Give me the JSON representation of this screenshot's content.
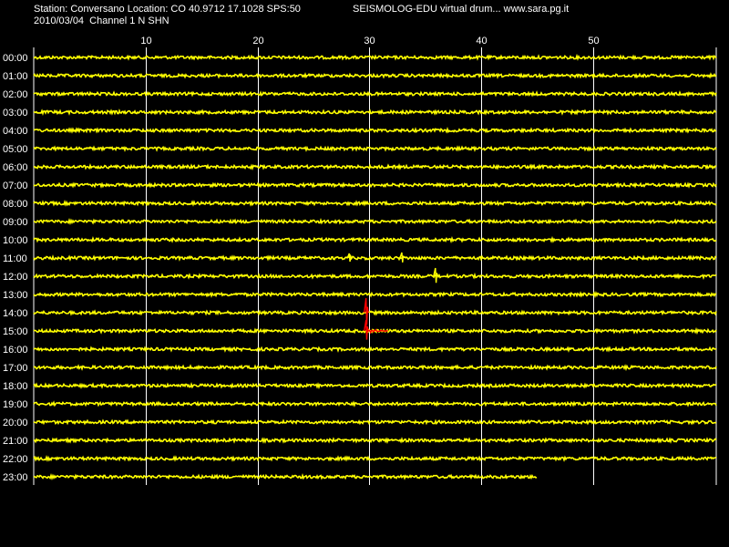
{
  "header": {
    "station_line": "Station: Conversano Location: CO 40.9712 17.1028 SPS:50",
    "date_line": "2010/03/04  Channel 1 N SHN",
    "app_line": "SEISMOLOG-EDU virtual drum... www.sara.pg.it"
  },
  "colors": {
    "background": "#000000",
    "trace": "#ffff00",
    "event_trace": "#ff0000",
    "grid": "#ffffff",
    "text": "#ffffff"
  },
  "chart_data": {
    "type": "line",
    "title": "",
    "xlabel": "",
    "ylabel": "",
    "xlim": [
      0,
      61
    ],
    "x_ticks": [
      10,
      20,
      30,
      40,
      50
    ],
    "x_tick_labels": [
      "10",
      "20",
      "30",
      "40",
      "50"
    ],
    "grid": true,
    "rows": [
      "00:00",
      "01:00",
      "02:00",
      "03:00",
      "04:00",
      "05:00",
      "06:00",
      "07:00",
      "08:00",
      "09:00",
      "10:00",
      "11:00",
      "12:00",
      "13:00",
      "14:00",
      "15:00",
      "16:00",
      "17:00",
      "18:00",
      "19:00",
      "20:00",
      "21:00",
      "22:00",
      "23:00"
    ],
    "last_row_end_minute": 45,
    "events": [
      {
        "row": "11:00",
        "minute": 28.2,
        "amplitude": 0.5,
        "color": "#ffff00"
      },
      {
        "row": "11:00",
        "minute": 32.9,
        "amplitude": 0.6,
        "color": "#ffff00"
      },
      {
        "row": "12:00",
        "minute": 35.9,
        "amplitude": 0.9,
        "color": "#ffff00"
      },
      {
        "row": "14:00",
        "minute": 29.7,
        "amplitude": 1.6,
        "color": "#ff0000"
      },
      {
        "row": "15:00",
        "minute": 29.7,
        "amplitude": 1.2,
        "color": "#ff0000",
        "coda_end": 31.7
      }
    ]
  }
}
